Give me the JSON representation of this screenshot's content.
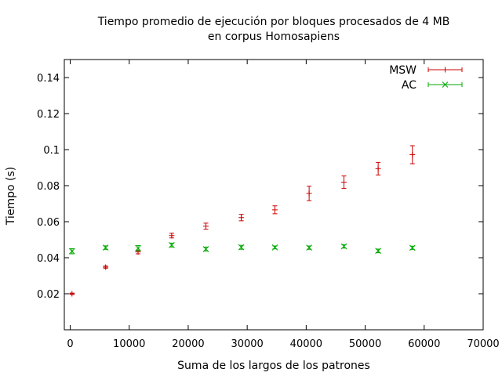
{
  "chart_data": {
    "type": "scatter",
    "title": "Tiempo promedio de ejecución por bloques procesados de 4 MB",
    "subtitle": "en corpus Homosapiens",
    "xlabel": "Suma de los largos de los patrones",
    "ylabel": "Tiempo (s)",
    "xlim": [
      -1000,
      70000
    ],
    "ylim": [
      0,
      0.15
    ],
    "x_ticks": [
      0,
      10000,
      20000,
      30000,
      40000,
      50000,
      60000,
      70000
    ],
    "y_ticks": [
      0.02,
      0.04,
      0.06,
      0.08,
      0.1,
      0.12,
      0.14
    ],
    "x_tick_labels": [
      "0",
      "10000",
      "20000",
      "30000",
      "40000",
      "50000",
      "60000",
      "70000"
    ],
    "y_tick_labels": [
      "0.02",
      "0.04",
      "0.06",
      "0.08",
      "0.1",
      "0.12",
      "0.14"
    ],
    "grid": false,
    "legend_position": "top-right",
    "series": [
      {
        "name": "MSW",
        "color": "#cc0000",
        "marker": "plus",
        "points": [
          {
            "x": 300,
            "y": 0.02,
            "err": 0.0004
          },
          {
            "x": 6000,
            "y": 0.0348,
            "err": 0.0006
          },
          {
            "x": 11500,
            "y": 0.0432,
            "err": 0.001
          },
          {
            "x": 17200,
            "y": 0.0523,
            "err": 0.0013
          },
          {
            "x": 23000,
            "y": 0.0575,
            "err": 0.0017
          },
          {
            "x": 29000,
            "y": 0.0623,
            "err": 0.0018
          },
          {
            "x": 34700,
            "y": 0.0666,
            "err": 0.0022
          },
          {
            "x": 40500,
            "y": 0.0757,
            "err": 0.004
          },
          {
            "x": 46400,
            "y": 0.0819,
            "err": 0.0035
          },
          {
            "x": 52200,
            "y": 0.0894,
            "err": 0.0035
          },
          {
            "x": 58000,
            "y": 0.0972,
            "err": 0.005
          }
        ]
      },
      {
        "name": "AC",
        "color": "#00aa00",
        "marker": "cross",
        "points": [
          {
            "x": 300,
            "y": 0.0436,
            "err": 0.0014
          },
          {
            "x": 6000,
            "y": 0.0456,
            "err": 0.001
          },
          {
            "x": 11500,
            "y": 0.0453,
            "err": 0.0015
          },
          {
            "x": 17200,
            "y": 0.047,
            "err": 0.0011
          },
          {
            "x": 23000,
            "y": 0.0448,
            "err": 0.0011
          },
          {
            "x": 29000,
            "y": 0.0458,
            "err": 0.0011
          },
          {
            "x": 34700,
            "y": 0.0457,
            "err": 0.0008
          },
          {
            "x": 40500,
            "y": 0.0456,
            "err": 0.0009
          },
          {
            "x": 46400,
            "y": 0.0463,
            "err": 0.001
          },
          {
            "x": 52200,
            "y": 0.0438,
            "err": 0.001
          },
          {
            "x": 58000,
            "y": 0.0455,
            "err": 0.0009
          }
        ]
      }
    ]
  }
}
